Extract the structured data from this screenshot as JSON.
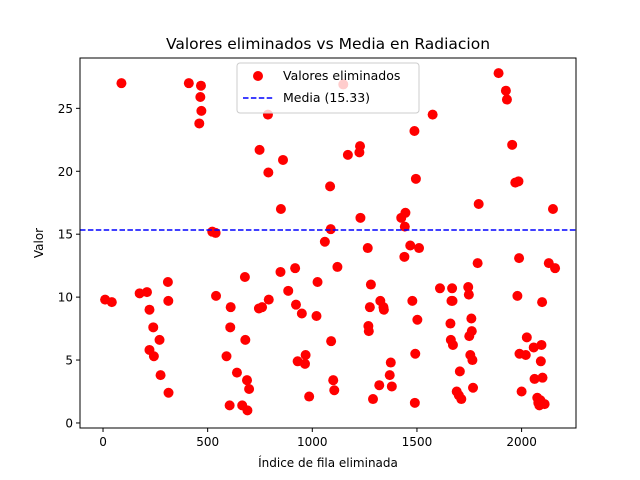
{
  "chart_data": {
    "type": "scatter",
    "title": "Valores eliminados vs Media en Radiacion",
    "xlabel": "Índice de fila eliminada",
    "ylabel": "Valor",
    "xlim": [
      -110,
      2260
    ],
    "ylim": [
      -0.4,
      29.0
    ],
    "xticks": [
      0,
      500,
      1000,
      1500,
      2000
    ],
    "yticks": [
      0,
      5,
      10,
      15,
      20,
      25
    ],
    "grid": false,
    "legend": {
      "placement": "upper-center",
      "entries": [
        "Valores eliminados",
        "Media (15.33)"
      ]
    },
    "mean_line": {
      "label": "Media (15.33)",
      "value": 15.33,
      "color": "#0000ff",
      "style": "dashed"
    },
    "series": [
      {
        "name": "Valores eliminados",
        "color": "#ff0000",
        "points": [
          [
            10,
            9.8
          ],
          [
            42,
            9.6
          ],
          [
            88,
            27.0
          ],
          [
            175,
            10.3
          ],
          [
            210,
            10.4
          ],
          [
            222,
            9.0
          ],
          [
            222,
            5.8
          ],
          [
            240,
            7.6
          ],
          [
            243,
            5.3
          ],
          [
            270,
            6.6
          ],
          [
            275,
            3.8
          ],
          [
            310,
            11.2
          ],
          [
            312,
            9.7
          ],
          [
            313,
            2.4
          ],
          [
            410,
            27.0
          ],
          [
            460,
            23.8
          ],
          [
            465,
            25.9
          ],
          [
            468,
            26.8
          ],
          [
            470,
            24.8
          ],
          [
            522,
            15.2
          ],
          [
            538,
            15.1
          ],
          [
            540,
            10.1
          ],
          [
            590,
            5.3
          ],
          [
            605,
            1.4
          ],
          [
            608,
            7.6
          ],
          [
            610,
            9.2
          ],
          [
            640,
            4.0
          ],
          [
            665,
            1.4
          ],
          [
            678,
            11.6
          ],
          [
            680,
            6.6
          ],
          [
            688,
            3.4
          ],
          [
            690,
            1.0
          ],
          [
            698,
            2.7
          ],
          [
            745,
            9.1
          ],
          [
            748,
            21.7
          ],
          [
            760,
            9.2
          ],
          [
            788,
            24.5
          ],
          [
            790,
            19.9
          ],
          [
            792,
            9.8
          ],
          [
            848,
            12.0
          ],
          [
            850,
            17.0
          ],
          [
            860,
            20.9
          ],
          [
            885,
            10.5
          ],
          [
            918,
            12.3
          ],
          [
            922,
            9.4
          ],
          [
            930,
            4.9
          ],
          [
            950,
            8.7
          ],
          [
            965,
            4.7
          ],
          [
            968,
            5.4
          ],
          [
            985,
            2.1
          ],
          [
            1020,
            8.5
          ],
          [
            1025,
            11.2
          ],
          [
            1060,
            14.4
          ],
          [
            1085,
            18.8
          ],
          [
            1088,
            15.4
          ],
          [
            1090,
            6.5
          ],
          [
            1100,
            3.4
          ],
          [
            1105,
            2.6
          ],
          [
            1120,
            12.4
          ],
          [
            1148,
            26.9
          ],
          [
            1170,
            21.3
          ],
          [
            1225,
            21.5
          ],
          [
            1228,
            22.0
          ],
          [
            1230,
            16.3
          ],
          [
            1265,
            13.9
          ],
          [
            1268,
            7.7
          ],
          [
            1270,
            7.3
          ],
          [
            1275,
            9.2
          ],
          [
            1280,
            11.0
          ],
          [
            1290,
            1.9
          ],
          [
            1320,
            3.0
          ],
          [
            1325,
            9.7
          ],
          [
            1340,
            9.2
          ],
          [
            1342,
            9.0
          ],
          [
            1370,
            3.8
          ],
          [
            1375,
            4.8
          ],
          [
            1380,
            2.9
          ],
          [
            1425,
            16.3
          ],
          [
            1440,
            13.2
          ],
          [
            1442,
            15.6
          ],
          [
            1445,
            16.7
          ],
          [
            1468,
            14.1
          ],
          [
            1478,
            9.7
          ],
          [
            1488,
            23.2
          ],
          [
            1490,
            1.6
          ],
          [
            1492,
            5.5
          ],
          [
            1495,
            19.4
          ],
          [
            1502,
            8.2
          ],
          [
            1510,
            13.9
          ],
          [
            1575,
            24.5
          ],
          [
            1610,
            10.7
          ],
          [
            1660,
            7.9
          ],
          [
            1662,
            6.6
          ],
          [
            1665,
            9.7
          ],
          [
            1668,
            10.7
          ],
          [
            1670,
            9.7
          ],
          [
            1672,
            6.2
          ],
          [
            1690,
            2.5
          ],
          [
            1700,
            2.2
          ],
          [
            1705,
            4.1
          ],
          [
            1712,
            1.9
          ],
          [
            1745,
            10.8
          ],
          [
            1748,
            10.2
          ],
          [
            1750,
            6.9
          ],
          [
            1755,
            5.4
          ],
          [
            1760,
            8.3
          ],
          [
            1762,
            7.3
          ],
          [
            1765,
            5.0
          ],
          [
            1768,
            2.8
          ],
          [
            1790,
            12.7
          ],
          [
            1795,
            17.4
          ],
          [
            1890,
            27.8
          ],
          [
            1925,
            26.4
          ],
          [
            1930,
            25.7
          ],
          [
            1955,
            22.1
          ],
          [
            1970,
            19.1
          ],
          [
            1980,
            10.1
          ],
          [
            1985,
            19.2
          ],
          [
            1988,
            13.1
          ],
          [
            1990,
            5.5
          ],
          [
            2000,
            2.5
          ],
          [
            2020,
            5.4
          ],
          [
            2025,
            6.8
          ],
          [
            2058,
            6.0
          ],
          [
            2062,
            3.5
          ],
          [
            2075,
            2.0
          ],
          [
            2080,
            1.6
          ],
          [
            2085,
            1.4
          ],
          [
            2090,
            1.8
          ],
          [
            2092,
            4.9
          ],
          [
            2095,
            6.2
          ],
          [
            2098,
            9.6
          ],
          [
            2100,
            3.6
          ],
          [
            2110,
            1.5
          ],
          [
            2130,
            12.7
          ],
          [
            2150,
            17.0
          ],
          [
            2160,
            12.3
          ]
        ]
      }
    ]
  }
}
